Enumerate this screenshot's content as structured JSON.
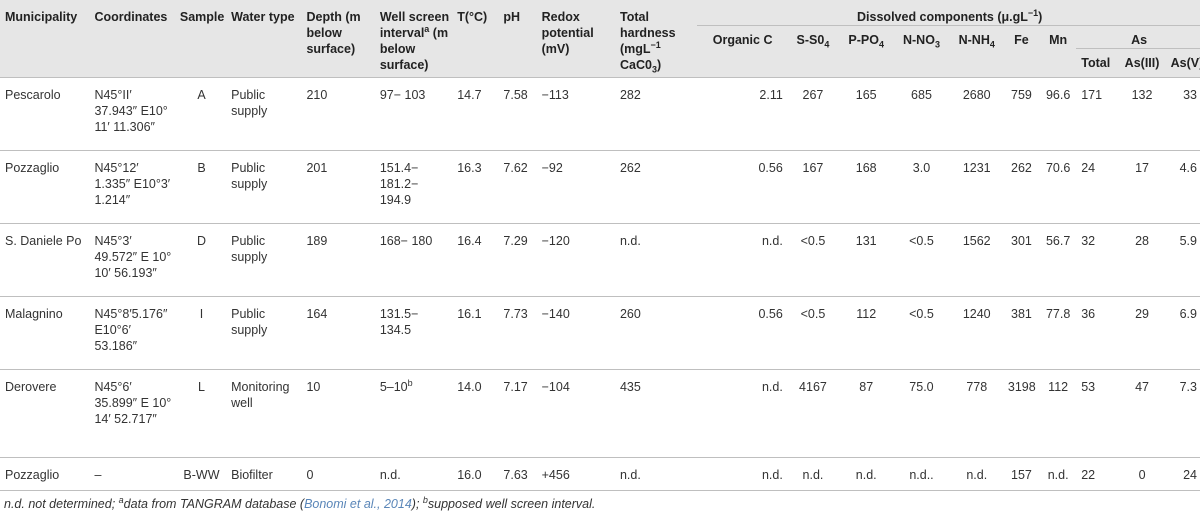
{
  "headers": {
    "municipality": "Municipality",
    "coordinates": "Coordinates",
    "sample": "Sample",
    "water_type": "Water type",
    "depth": "Depth (m below surface)",
    "well_screen_pre": "Well screen interval",
    "well_screen_sup": "a",
    "well_screen_post": " (m below surface)",
    "temp": "T(°C)",
    "ph": "pH",
    "redox": "Redox potential (mV)",
    "hardness_pre": "Total hardness (mgL",
    "hardness_sup": "−1",
    "hardness_post": " CaC0",
    "hardness_sub": "3",
    "hardness_end": ")",
    "dissolved_pre": "Dissolved components (μ.gL",
    "dissolved_sup": "−1",
    "dissolved_post": ")",
    "organic_c": "Organic C",
    "s_so4_pre": "S-S0",
    "s_so4_sub": "4",
    "p_po4_pre": "P-PO",
    "p_po4_sub": "4",
    "n_no3_pre": "N-NO",
    "n_no3_sub": "3",
    "n_nh4_pre": "N-NH",
    "n_nh4_sub": "4",
    "fe": "Fe",
    "mn": "Mn",
    "as": "As",
    "as_total": "Total",
    "as_iii": "As(III)",
    "as_v": "As(V)"
  },
  "rows": [
    {
      "municipality": "Pescarolo",
      "coordinates": "N45°II′ 37.943″ E10° 11′ 11.306″",
      "sample": "A",
      "water_type": "Public supply",
      "depth": "210",
      "screen": "97− 103",
      "screen_sup": "",
      "t": "14.7",
      "ph": "7.58",
      "redox": "−113",
      "hardness": "282",
      "organic_c": "2.11",
      "s_so4": "267",
      "p_po4": "165",
      "n_no3": "685",
      "n_nh4": "2680",
      "fe": "759",
      "mn": "96.6",
      "as_total": "171",
      "as_iii": "132",
      "as_v": "33"
    },
    {
      "municipality": "Pozzaglio",
      "coordinates": "N45°12′ 1.335″ E10°3′ 1.214″",
      "sample": "B",
      "water_type": "Public supply",
      "depth": "201",
      "screen": "151.4− 181.2− 194.9",
      "screen_sup": "",
      "t": "16.3",
      "ph": "7.62",
      "redox": "−92",
      "hardness": "262",
      "organic_c": "0.56",
      "s_so4": "167",
      "p_po4": "168",
      "n_no3": "3.0",
      "n_nh4": "1231",
      "fe": "262",
      "mn": "70.6",
      "as_total": "24",
      "as_iii": "17",
      "as_v": "4.6"
    },
    {
      "municipality": "S. Daniele Po",
      "coordinates": "N45°3′ 49.572″ E 10° 10′ 56.193″",
      "sample": "D",
      "water_type": "Public supply",
      "depth": "189",
      "screen": "168− 180",
      "screen_sup": "",
      "t": "16.4",
      "ph": "7.29",
      "redox": "−120",
      "hardness": "n.d.",
      "organic_c": "n.d.",
      "s_so4": "<0.5",
      "p_po4": "131",
      "n_no3": "<0.5",
      "n_nh4": "1562",
      "fe": "301",
      "mn": "56.7",
      "as_total": "32",
      "as_iii": "28",
      "as_v": "5.9"
    },
    {
      "municipality": "Malagnino",
      "coordinates": "N45°8′5.176″ E10°6′ 53.186″",
      "sample": "I",
      "water_type": "Public supply",
      "depth": "164",
      "screen": "131.5− 134.5",
      "screen_sup": "",
      "t": "16.1",
      "ph": "7.73",
      "redox": "−140",
      "hardness": "260",
      "organic_c": "0.56",
      "s_so4": "<0.5",
      "p_po4": "112",
      "n_no3": "<0.5",
      "n_nh4": "1240",
      "fe": "381",
      "mn": "77.8",
      "as_total": "36",
      "as_iii": "29",
      "as_v": "6.9"
    },
    {
      "municipality": "Derovere",
      "coordinates": "N45°6′ 35.899″ E 10° 14′ 52.717″",
      "sample": "L",
      "water_type": "Monitoring well",
      "depth": "10",
      "screen": "5–10",
      "screen_sup": "b",
      "t": "14.0",
      "ph": "7.17",
      "redox": "−104",
      "hardness": "435",
      "organic_c": "n.d.",
      "s_so4": "4167",
      "p_po4": "87",
      "n_no3": "75.0",
      "n_nh4": "778",
      "fe": "3198",
      "mn": "112",
      "as_total": "53",
      "as_iii": "47",
      "as_v": "7.3"
    },
    {
      "municipality": "Pozzaglio",
      "coordinates": "–",
      "sample": "B-WW",
      "water_type": "Biofilter",
      "depth": "0",
      "screen": "n.d.",
      "screen_sup": "",
      "t": "16.0",
      "ph": "7.63",
      "redox": "+456",
      "hardness": "n.d.",
      "organic_c": "n.d.",
      "s_so4": "n.d.",
      "p_po4": "n.d.",
      "n_no3": "n.d..",
      "n_nh4": "n.d.",
      "fe": "157",
      "mn": "n.d.",
      "as_total": "22",
      "as_iii": "0",
      "as_v": "24"
    }
  ],
  "footnote": {
    "part1": "n.d. not determined; ",
    "sup_a": "a",
    "part2": "data from TANGRAM database (",
    "link": "Bonomi et al., 2014",
    "part3": "); ",
    "sup_b": "b",
    "part4": "supposed well screen interval."
  }
}
